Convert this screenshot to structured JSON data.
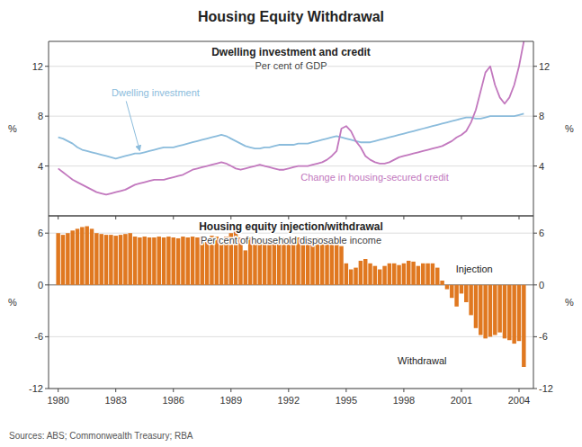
{
  "chart_data": [
    {
      "type": "line",
      "suptitle": "Housing Equity Withdrawal",
      "source": "Sources: ABS; Commonwealth Treasury; RBA",
      "title": "Dwelling investment and credit",
      "subtitle": "Per cent of GDP",
      "ylabel": "%",
      "y2label": "%",
      "xlim": [
        1979.5,
        2004.75
      ],
      "xticks": [
        1980,
        1983,
        1986,
        1989,
        1992,
        1995,
        1998,
        2001,
        2004
      ],
      "ylim": [
        0,
        14
      ],
      "yticks": [
        4,
        8,
        12
      ],
      "y2lim": [
        0,
        14
      ],
      "y2ticks": [
        4,
        8,
        12
      ],
      "grid": true,
      "tick_labels": "y",
      "x": [
        1980.0,
        1980.25,
        1980.5,
        1980.75,
        1981.0,
        1981.25,
        1981.5,
        1981.75,
        1982.0,
        1982.25,
        1982.5,
        1982.75,
        1983.0,
        1983.25,
        1983.5,
        1983.75,
        1984.0,
        1984.25,
        1984.5,
        1984.75,
        1985.0,
        1985.25,
        1985.5,
        1985.75,
        1986.0,
        1986.25,
        1986.5,
        1986.75,
        1987.0,
        1987.25,
        1987.5,
        1987.75,
        1988.0,
        1988.25,
        1988.5,
        1988.75,
        1989.0,
        1989.25,
        1989.5,
        1989.75,
        1990.0,
        1990.25,
        1990.5,
        1990.75,
        1991.0,
        1991.25,
        1991.5,
        1991.75,
        1992.0,
        1992.25,
        1992.5,
        1992.75,
        1993.0,
        1993.25,
        1993.5,
        1993.75,
        1994.0,
        1994.25,
        1994.5,
        1994.75,
        1995.0,
        1995.25,
        1995.5,
        1995.75,
        1996.0,
        1996.25,
        1996.5,
        1996.75,
        1997.0,
        1997.25,
        1997.5,
        1997.75,
        1998.0,
        1998.25,
        1998.5,
        1998.75,
        1999.0,
        1999.25,
        1999.5,
        1999.75,
        2000.0,
        2000.25,
        2000.5,
        2000.75,
        2001.0,
        2001.25,
        2001.5,
        2001.75,
        2002.0,
        2002.25,
        2002.5,
        2002.75,
        2003.0,
        2003.25,
        2003.5,
        2003.75,
        2004.0,
        2004.25
      ],
      "series": [
        {
          "name": "Dwelling investment",
          "color": "#8BBCDC",
          "values": [
            6.3,
            6.2,
            6.0,
            5.8,
            5.5,
            5.3,
            5.2,
            5.1,
            5.0,
            4.9,
            4.8,
            4.7,
            4.6,
            4.7,
            4.8,
            4.9,
            5.0,
            5.0,
            5.1,
            5.2,
            5.3,
            5.4,
            5.5,
            5.5,
            5.5,
            5.6,
            5.7,
            5.8,
            5.9,
            6.0,
            6.1,
            6.2,
            6.3,
            6.4,
            6.5,
            6.4,
            6.2,
            6.0,
            5.8,
            5.6,
            5.5,
            5.4,
            5.4,
            5.5,
            5.5,
            5.6,
            5.7,
            5.7,
            5.7,
            5.7,
            5.8,
            5.8,
            5.8,
            5.9,
            6.0,
            6.1,
            6.2,
            6.3,
            6.4,
            6.3,
            6.2,
            6.1,
            6.0,
            5.9,
            5.9,
            5.9,
            6.0,
            6.1,
            6.2,
            6.3,
            6.4,
            6.5,
            6.6,
            6.7,
            6.8,
            6.9,
            7.0,
            7.1,
            7.2,
            7.3,
            7.4,
            7.5,
            7.6,
            7.7,
            7.8,
            7.9,
            7.9,
            7.8,
            7.8,
            7.9,
            8.0,
            8.0,
            8.0,
            8.0,
            8.0,
            8.0,
            8.1,
            8.2
          ]
        },
        {
          "name": "Change in housing-secured credit",
          "color": "#C278BE",
          "values": [
            3.8,
            3.5,
            3.2,
            2.9,
            2.7,
            2.5,
            2.3,
            2.1,
            1.9,
            1.8,
            1.7,
            1.8,
            1.9,
            2.0,
            2.1,
            2.3,
            2.5,
            2.6,
            2.7,
            2.8,
            2.9,
            2.9,
            2.9,
            3.0,
            3.1,
            3.2,
            3.3,
            3.5,
            3.7,
            3.8,
            3.9,
            4.0,
            4.1,
            4.2,
            4.3,
            4.2,
            4.0,
            3.8,
            3.7,
            3.8,
            3.9,
            4.0,
            4.1,
            4.0,
            3.9,
            3.8,
            3.7,
            3.7,
            3.8,
            3.9,
            4.0,
            4.0,
            4.0,
            4.1,
            4.2,
            4.3,
            4.5,
            4.8,
            5.2,
            7.0,
            7.2,
            6.8,
            6.0,
            5.5,
            4.8,
            4.5,
            4.3,
            4.2,
            4.2,
            4.3,
            4.5,
            4.7,
            4.8,
            4.9,
            5.0,
            5.1,
            5.2,
            5.3,
            5.4,
            5.5,
            5.6,
            5.8,
            6.0,
            6.3,
            6.5,
            6.8,
            7.5,
            8.5,
            10.0,
            11.5,
            12.0,
            10.5,
            9.5,
            9.0,
            9.5,
            10.5,
            12.0,
            14.0
          ]
        }
      ]
    },
    {
      "type": "bar",
      "title": "Housing equity injection/withdrawal",
      "subtitle": "Per cent of household disposable income",
      "ylabel": "%",
      "y2label": "%",
      "annotations": [
        "Injection",
        "Withdrawal"
      ],
      "xlim": [
        1979.5,
        2004.75
      ],
      "xticks": [
        1980,
        1983,
        1986,
        1989,
        1992,
        1995,
        1998,
        2001,
        2004
      ],
      "ylim": [
        -12,
        8
      ],
      "yticks": [
        -12,
        -6,
        0,
        6
      ],
      "y2lim": [
        -12,
        8
      ],
      "y2ticks": [
        -12,
        -6,
        0,
        6
      ],
      "grid": true,
      "color": "#E07820",
      "x": [
        1980.0,
        1980.25,
        1980.5,
        1980.75,
        1981.0,
        1981.25,
        1981.5,
        1981.75,
        1982.0,
        1982.25,
        1982.5,
        1982.75,
        1983.0,
        1983.25,
        1983.5,
        1983.75,
        1984.0,
        1984.25,
        1984.5,
        1984.75,
        1985.0,
        1985.25,
        1985.5,
        1985.75,
        1986.0,
        1986.25,
        1986.5,
        1986.75,
        1987.0,
        1987.25,
        1987.5,
        1987.75,
        1988.0,
        1988.25,
        1988.5,
        1988.75,
        1989.0,
        1989.25,
        1989.5,
        1989.75,
        1990.0,
        1990.25,
        1990.5,
        1990.75,
        1991.0,
        1991.25,
        1991.5,
        1991.75,
        1992.0,
        1992.25,
        1992.5,
        1992.75,
        1993.0,
        1993.25,
        1993.5,
        1993.75,
        1994.0,
        1994.25,
        1994.5,
        1994.75,
        1995.0,
        1995.25,
        1995.5,
        1995.75,
        1996.0,
        1996.25,
        1996.5,
        1996.75,
        1997.0,
        1997.25,
        1997.5,
        1997.75,
        1998.0,
        1998.25,
        1998.5,
        1998.75,
        1999.0,
        1999.25,
        1999.5,
        1999.75,
        2000.0,
        2000.25,
        2000.5,
        2000.75,
        2001.0,
        2001.25,
        2001.5,
        2001.75,
        2002.0,
        2002.25,
        2002.5,
        2002.75,
        2003.0,
        2003.25,
        2003.5,
        2003.75,
        2004.0,
        2004.25
      ],
      "values": [
        6.0,
        5.8,
        6.0,
        6.3,
        6.5,
        6.7,
        6.8,
        6.5,
        6.0,
        5.9,
        5.8,
        5.8,
        5.7,
        5.8,
        5.9,
        6.0,
        5.6,
        5.5,
        5.6,
        5.5,
        5.5,
        5.6,
        5.5,
        5.6,
        5.5,
        5.4,
        5.6,
        5.5,
        5.6,
        5.5,
        5.6,
        5.5,
        5.7,
        5.6,
        5.5,
        5.6,
        6.0,
        6.3,
        5.5,
        4.0,
        5.5,
        5.4,
        5.5,
        5.4,
        5.4,
        5.4,
        5.4,
        5.5,
        5.5,
        5.4,
        5.5,
        5.4,
        5.5,
        5.5,
        5.5,
        5.5,
        5.4,
        5.3,
        5.0,
        4.5,
        2.5,
        1.8,
        2.0,
        2.8,
        3.0,
        2.5,
        2.2,
        1.8,
        2.2,
        2.5,
        2.5,
        2.3,
        2.5,
        2.8,
        2.7,
        2.2,
        2.5,
        2.5,
        2.5,
        2.0,
        0.5,
        -0.5,
        -1.5,
        -2.5,
        -1.0,
        -2.0,
        -3.5,
        -5.0,
        -5.8,
        -6.2,
        -6.0,
        -5.8,
        -5.5,
        -6.2,
        -6.4,
        -6.8,
        -6.5,
        -9.5
      ]
    }
  ]
}
